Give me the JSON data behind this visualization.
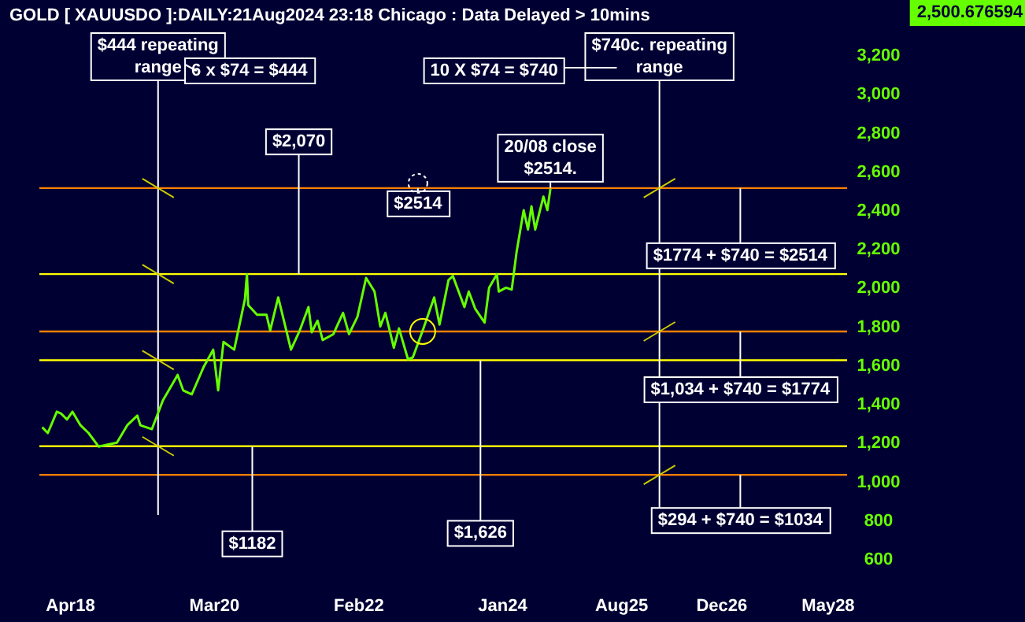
{
  "chart_data": {
    "type": "line",
    "title": "GOLD [ XAUUSDO ]:DAILY:21Aug2024 23:18 Chicago : Data Delayed > 10mins",
    "x": [
      "2017-11-15",
      "2017-12-12",
      "2018-01-25",
      "2018-02-15",
      "2018-03-15",
      "2018-04-11",
      "2018-05-20",
      "2018-06-28",
      "2018-08-16",
      "2018-09-28",
      "2018-11-13",
      "2019-01-02",
      "2019-02-20",
      "2019-03-07",
      "2019-05-02",
      "2019-06-25",
      "2019-08-08",
      "2019-09-04",
      "2019-10-01",
      "2019-11-12",
      "2020-01-08",
      "2020-02-24",
      "2020-03-19",
      "2020-04-14",
      "2020-06-05",
      "2020-07-27",
      "2020-08-06",
      "2020-08-12",
      "2020-09-24",
      "2020-11-09",
      "2020-11-27",
      "2021-01-05",
      "2021-03-08",
      "2021-04-20",
      "2021-06-01",
      "2021-06-17",
      "2021-07-15",
      "2021-08-09",
      "2021-09-30",
      "2021-11-16",
      "2021-12-15",
      "2022-01-25",
      "2022-03-08",
      "2022-04-18",
      "2022-05-16",
      "2022-06-10",
      "2022-07-21",
      "2022-08-15",
      "2022-09-28",
      "2022-10-21",
      "2022-11-04",
      "2022-12-12",
      "2023-02-02",
      "2023-02-28",
      "2023-04-13",
      "2023-05-04",
      "2023-06-29",
      "2023-07-20",
      "2023-08-21",
      "2023-10-05",
      "2023-10-27",
      "2023-12-04",
      "2023-12-13",
      "2024-01-17",
      "2024-02-14",
      "2024-03-08",
      "2024-04-12",
      "2024-05-03",
      "2024-05-20",
      "2024-06-07",
      "2024-07-17",
      "2024-08-05",
      "2024-08-20"
    ],
    "series": [
      {
        "color": "#66ff00",
        "values": [
          1280,
          1250,
          1360,
          1350,
          1320,
          1360,
          1290,
          1250,
          1180,
          1190,
          1200,
          1290,
          1340,
          1290,
          1270,
          1420,
          1500,
          1550,
          1470,
          1450,
          1590,
          1680,
          1470,
          1720,
          1680,
          1940,
          2070,
          1910,
          1860,
          1860,
          1780,
          1950,
          1680,
          1780,
          1900,
          1770,
          1830,
          1730,
          1760,
          1870,
          1760,
          1850,
          2050,
          1980,
          1800,
          1870,
          1690,
          1790,
          1630,
          1640,
          1680,
          1790,
          1950,
          1810,
          2040,
          2060,
          1900,
          1980,
          1890,
          1820,
          2000,
          2070,
          1980,
          2000,
          1990,
          2180,
          2400,
          2300,
          2420,
          2300,
          2470,
          2400,
          2510
        ]
      }
    ],
    "xlim": [
      "2017-11-01",
      "2028-08-01"
    ],
    "xticks": [
      {
        "value": "2018-04",
        "label": "Apr18"
      },
      {
        "value": "2020-03",
        "label": "Mar20"
      },
      {
        "value": "2022-02",
        "label": "Feb22"
      },
      {
        "value": "2024-01",
        "label": "Jan24"
      },
      {
        "value": "2025-08",
        "label": "Aug25"
      },
      {
        "value": "2026-12",
        "label": "Dec26"
      },
      {
        "value": "2028-05",
        "label": "May28"
      }
    ],
    "ylim": [
      600,
      3200
    ],
    "yticks": [
      {
        "value": 600,
        "label": "600"
      },
      {
        "value": 800,
        "label": "800"
      },
      {
        "value": 1000,
        "label": "1,000"
      },
      {
        "value": 1200,
        "label": "1,200"
      },
      {
        "value": 1400,
        "label": "1,400"
      },
      {
        "value": 1600,
        "label": "1,600"
      },
      {
        "value": 1800,
        "label": "1,800"
      },
      {
        "value": 2000,
        "label": "2,000"
      },
      {
        "value": 2200,
        "label": "2,200"
      },
      {
        "value": 2400,
        "label": "2,400"
      },
      {
        "value": 2600,
        "label": "2,600"
      },
      {
        "value": 2800,
        "label": "2,800"
      },
      {
        "value": 3000,
        "label": "3,000"
      },
      {
        "value": 3200,
        "label": "3,200"
      }
    ],
    "ref_lines": [
      {
        "axis": "y",
        "value": 2514,
        "color": "#ff8000"
      },
      {
        "axis": "y",
        "value": 1774,
        "color": "#ff8000"
      },
      {
        "axis": "y",
        "value": 1034,
        "color": "#ff8000"
      },
      {
        "axis": "y",
        "value": 2070,
        "color": "#ffff00"
      },
      {
        "axis": "y",
        "value": 1626,
        "color": "#ffff00"
      },
      {
        "axis": "y",
        "value": 1182,
        "color": "#ffff00"
      },
      {
        "axis": "x",
        "value": "2019-06-01",
        "color": "#ffffff"
      },
      {
        "axis": "x",
        "value": "2026-02-01",
        "color": "#ffffff"
      }
    ],
    "annotations": [
      "$444 repeating range",
      "6 x $74 = $444",
      "10 X $74 = $740",
      "$740c. repeating range",
      "2,500.676594",
      {
        "text": "$2,070",
        "x": "2021-04-15",
        "y": 2070
      },
      {
        "text": "$2514",
        "x": "2022-11-15",
        "y": 2514
      },
      {
        "text": "20/08 close $2514.",
        "x": "2024-08-20",
        "y": 2514
      },
      {
        "text": "$1774 + $740 = $2514",
        "x": "2027-03-01",
        "y": 2514
      },
      {
        "text": "$1,034 + $740 = $1774",
        "x": "2027-03-01",
        "y": 1774
      },
      {
        "text": "$294 + $740 = $1034",
        "x": "2027-03-01",
        "y": 1034
      },
      {
        "text": "$1182",
        "x": "2020-09-01",
        "y": 1182
      },
      {
        "text": "$1,626",
        "x": "2023-09-15",
        "y": 1626
      }
    ],
    "grid": false,
    "marker": "none",
    "line_style": "solid"
  }
}
